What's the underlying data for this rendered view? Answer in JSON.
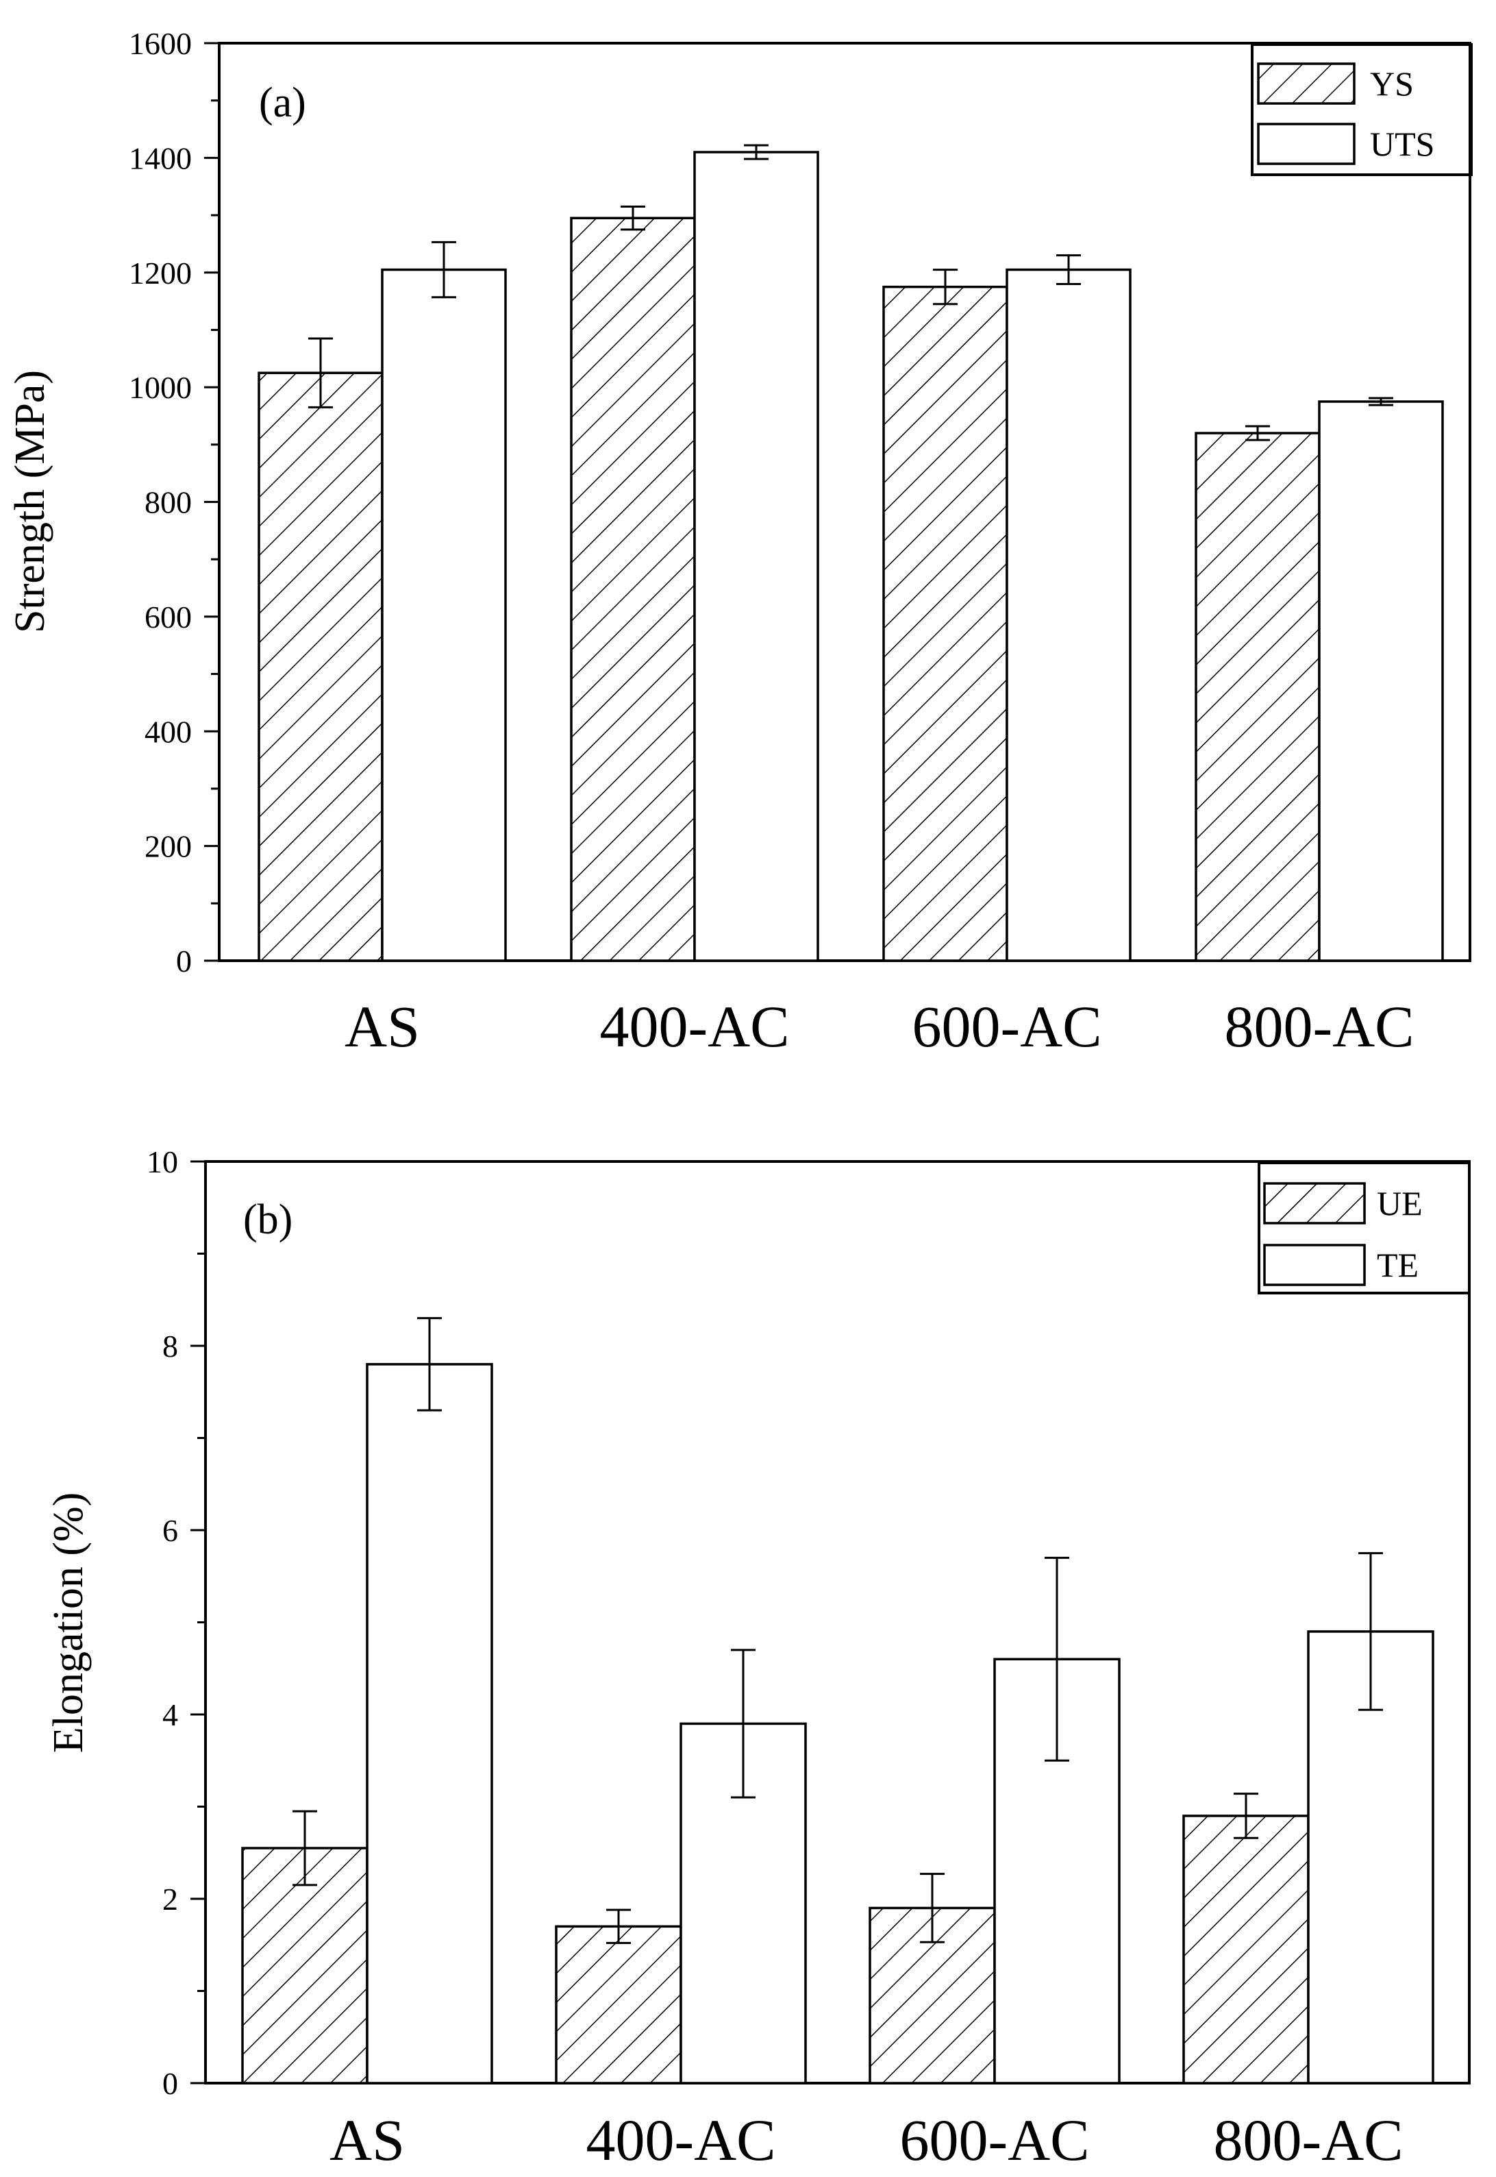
{
  "chart_data": [
    {
      "type": "bar",
      "panel_label": "(a)",
      "categories": [
        "AS",
        "400-AC",
        "600-AC",
        "800-AC"
      ],
      "ylabel": "Strength (MPa)",
      "xlabel": "",
      "ylim": [
        0,
        1600
      ],
      "yticks": [
        "0",
        "200",
        "400",
        "600",
        "800",
        "1000",
        "1200",
        "1400",
        "1600"
      ],
      "legend_position": "top-right",
      "series": [
        {
          "name": "YS",
          "pattern": "hatched",
          "values": [
            1025,
            1295,
            1175,
            920
          ],
          "errors": [
            60,
            20,
            30,
            12
          ]
        },
        {
          "name": "UTS",
          "pattern": "open",
          "values": [
            1205,
            1410,
            1205,
            975
          ],
          "errors": [
            48,
            12,
            25,
            6
          ]
        }
      ]
    },
    {
      "type": "bar",
      "panel_label": "(b)",
      "categories": [
        "AS",
        "400-AC",
        "600-AC",
        "800-AC"
      ],
      "ylabel": "Elongation (%)",
      "xlabel": "",
      "ylim": [
        0,
        10
      ],
      "yticks": [
        "0",
        "2",
        "4",
        "6",
        "8",
        "10"
      ],
      "legend_position": "top-right",
      "series": [
        {
          "name": "UE",
          "pattern": "hatched",
          "values": [
            2.55,
            1.7,
            1.9,
            2.9
          ],
          "errors": [
            0.4,
            0.18,
            0.37,
            0.24
          ]
        },
        {
          "name": "TE",
          "pattern": "open",
          "values": [
            7.8,
            3.9,
            4.6,
            4.9
          ],
          "errors": [
            0.5,
            0.8,
            1.1,
            0.85
          ]
        }
      ]
    }
  ]
}
